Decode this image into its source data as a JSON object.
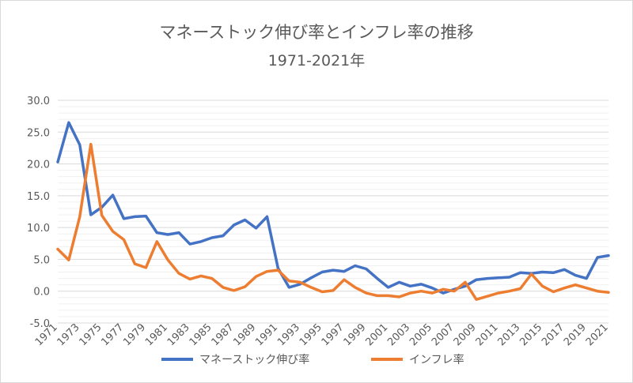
{
  "chart_data": {
    "type": "line",
    "title": "マネーストック伸び率とインフレ率の推移",
    "subtitle": "1971-2021年",
    "xlabel": "",
    "ylabel": "",
    "ylim": [
      -5,
      30
    ],
    "yticks": [
      "30.0",
      "25.0",
      "20.0",
      "15.0",
      "10.0",
      "5.0",
      "0.0",
      "-5.0"
    ],
    "ytick_values": [
      30,
      25,
      20,
      15,
      10,
      5,
      0,
      -5
    ],
    "grid": true,
    "legend_position": "bottom",
    "x": [
      1971,
      1972,
      1973,
      1974,
      1975,
      1976,
      1977,
      1978,
      1979,
      1980,
      1981,
      1982,
      1983,
      1984,
      1985,
      1986,
      1987,
      1988,
      1989,
      1990,
      1991,
      1992,
      1993,
      1994,
      1995,
      1996,
      1997,
      1998,
      1999,
      2000,
      2001,
      2002,
      2003,
      2004,
      2005,
      2006,
      2007,
      2008,
      2009,
      2010,
      2011,
      2012,
      2013,
      2014,
      2015,
      2016,
      2017,
      2018,
      2019,
      2020,
      2021
    ],
    "xtick_labels": [
      "1971",
      "1973",
      "1975",
      "1977",
      "1979",
      "1981",
      "1983",
      "1985",
      "1987",
      "1989",
      "1991",
      "1993",
      "1995",
      "1997",
      "1999",
      "2001",
      "2003",
      "2005",
      "2007",
      "2009",
      "2011",
      "2013",
      "2015",
      "2017",
      "2019",
      "2021"
    ],
    "series": [
      {
        "name": "マネーストック伸び率",
        "color": "#4472c4",
        "values": [
          20.3,
          26.5,
          23.0,
          12.0,
          13.2,
          15.1,
          11.4,
          11.7,
          11.8,
          9.2,
          8.9,
          9.2,
          7.4,
          7.8,
          8.4,
          8.7,
          10.4,
          11.2,
          9.9,
          11.7,
          3.6,
          0.6,
          1.1,
          2.1,
          3.0,
          3.3,
          3.1,
          4.0,
          3.5,
          2.0,
          0.6,
          1.4,
          0.8,
          1.1,
          0.5,
          -0.3,
          0.3,
          0.8,
          1.8,
          2.0,
          2.1,
          2.2,
          2.9,
          2.8,
          3.0,
          2.9,
          3.4,
          2.5,
          2.0,
          5.3,
          5.6
        ]
      },
      {
        "name": "インフレ率",
        "color": "#ed7d31",
        "values": [
          6.6,
          4.9,
          11.7,
          23.1,
          11.9,
          9.4,
          8.1,
          4.3,
          3.7,
          7.8,
          4.9,
          2.8,
          1.9,
          2.4,
          2.0,
          0.6,
          0.1,
          0.7,
          2.3,
          3.1,
          3.3,
          1.6,
          1.4,
          0.6,
          -0.1,
          0.1,
          1.8,
          0.6,
          -0.3,
          -0.7,
          -0.7,
          -0.9,
          -0.3,
          0.0,
          -0.3,
          0.3,
          0.0,
          1.4,
          -1.3,
          -0.8,
          -0.3,
          0.0,
          0.4,
          2.7,
          0.8,
          -0.1,
          0.5,
          1.0,
          0.5,
          0.0,
          -0.2
        ]
      }
    ]
  }
}
